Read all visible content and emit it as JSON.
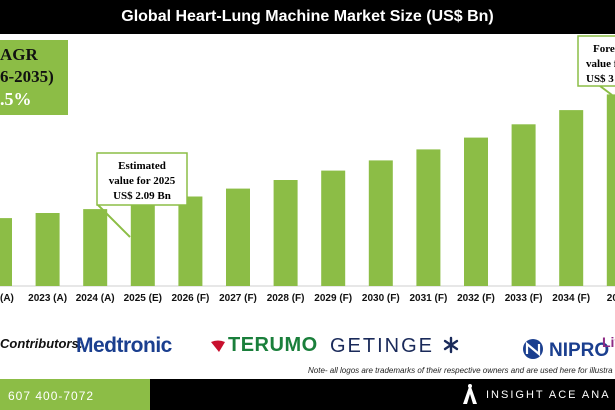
{
  "title": "Global Heart-Lung Machine Market Size (US$ Bn)",
  "cagr": {
    "line1": "AGR",
    "line2": "6-2035)",
    "line3": ".5%"
  },
  "callouts": {
    "estimated": [
      "Estimated",
      "value for 2025",
      "US$ 2.09 Bn"
    ],
    "forecast": [
      "Fore",
      "value f",
      "US$ 3"
    ]
  },
  "colors": {
    "bar": "#8cbd46",
    "title_bg": "#000000",
    "footer_green": "#8cbd46",
    "callout_border": "#8cbd46"
  },
  "chart_data": {
    "type": "bar",
    "title": "Global Heart-Lung Machine Market Size (US$ Bn)",
    "xlabel": "",
    "ylabel": "",
    "categories": [
      "(A)",
      "2023 (A)",
      "2024 (A)",
      "2025 (E)",
      "2026 (F)",
      "2027 (F)",
      "2028 (F)",
      "2029 (F)",
      "2030 (F)",
      "2031 (F)",
      "2032 (F)",
      "2033 (F)",
      "2034 (F)",
      "20"
    ],
    "values": [
      1.73,
      1.86,
      1.96,
      2.09,
      2.28,
      2.48,
      2.7,
      2.94,
      3.2,
      3.48,
      3.78,
      4.12,
      4.48,
      4.88
    ],
    "ylim": [
      0,
      5.4
    ],
    "grid": false,
    "legend": "none"
  },
  "contributors": {
    "label": "Contributors:",
    "logos": [
      "Medtronic",
      "TERUMO",
      "GETINGE",
      "NIPRO",
      "Liv"
    ]
  },
  "note": "Note- all logos are trademarks of their respective owners and are used here for illustra",
  "footer": {
    "phone": "607 400-7072",
    "brand": "INSIGHT ACE ANA"
  }
}
